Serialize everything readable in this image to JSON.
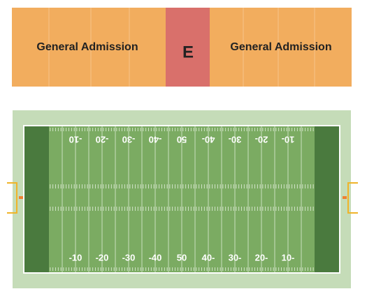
{
  "sections": [
    {
      "label": "General Admission"
    },
    {
      "label": "E"
    },
    {
      "label": "General Admission"
    }
  ],
  "field": {
    "yard_numbers": [
      "-10",
      "-20",
      "-30",
      "-40",
      "50",
      "40-",
      "30-",
      "20-",
      "10-"
    ]
  }
}
